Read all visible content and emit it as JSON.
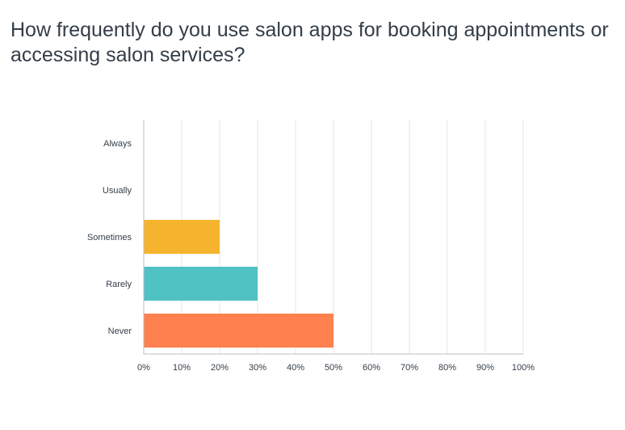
{
  "question": "How frequently do you use salon apps for booking appointments or accessing salon services?",
  "chart_data": {
    "type": "bar",
    "orientation": "horizontal",
    "title": "How frequently do you use salon apps for booking appointments or accessing salon services?",
    "categories": [
      "Always",
      "Usually",
      "Sometimes",
      "Rarely",
      "Never"
    ],
    "values": [
      0,
      0,
      20,
      30,
      50
    ],
    "colors": [
      "#f6b42e",
      "#f6b42e",
      "#f6b42e",
      "#50c2c4",
      "#fe814f"
    ],
    "xlim": [
      0,
      100
    ],
    "xticks": [
      "0%",
      "10%",
      "20%",
      "30%",
      "40%",
      "50%",
      "60%",
      "70%",
      "80%",
      "90%",
      "100%"
    ],
    "unit": "%",
    "grid": true,
    "legend": "none",
    "xlabel": "",
    "ylabel": ""
  }
}
